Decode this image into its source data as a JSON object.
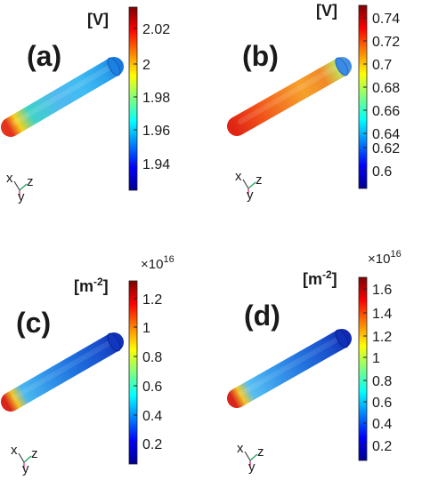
{
  "panels": [
    {
      "id": "a",
      "label": "(a)",
      "unit": "[V]",
      "unit_sup": "",
      "exponent": "",
      "exponent_sup": "",
      "ticks": [
        "2.02",
        "2",
        "1.98",
        "1.96",
        "1.94"
      ],
      "colorbar_scheme": "jet",
      "rod_gradient": [
        "#e4321e",
        "#f4d21c",
        "#3fd2c8",
        "#4fb8f0",
        "#3fbcf2",
        "#2aa2ec",
        "#1878dc"
      ],
      "axes_triad": {
        "x": "x",
        "y": "y",
        "z": "z"
      }
    },
    {
      "id": "b",
      "label": "(b)",
      "unit": "[V]",
      "unit_sup": "",
      "exponent": "",
      "exponent_sup": "",
      "ticks": [
        "0.74",
        "0.72",
        "0.7",
        "0.68",
        "0.66",
        "0.64",
        "0.62",
        "0.6"
      ],
      "colorbar_scheme": "jet",
      "rod_gradient": [
        "#e02414",
        "#f04c18",
        "#f47a22",
        "#f6a02c",
        "#f08a26",
        "#c8d858",
        "#3a8aee"
      ],
      "axes_triad": {
        "x": "x",
        "y": "y",
        "z": "z"
      }
    },
    {
      "id": "c",
      "label": "(c)",
      "unit": "[m",
      "unit_sup": "-2",
      "exponent": "×10",
      "exponent_sup": "16",
      "ticks": [
        "1.2",
        "1",
        "0.8",
        "0.6",
        "0.4",
        "0.2"
      ],
      "colorbar_scheme": "jet",
      "rod_gradient": [
        "#d8241a",
        "#f0c82a",
        "#4ab8ee",
        "#3296ea",
        "#1e6ede",
        "#1850cc",
        "#1030b8"
      ],
      "axes_triad": {
        "x": "x",
        "y": "y",
        "z": "z"
      }
    },
    {
      "id": "d",
      "label": "(d)",
      "unit": "[m",
      "unit_sup": "-2",
      "exponent": "×10",
      "exponent_sup": "16",
      "ticks": [
        "1.6",
        "1.4",
        "1.2",
        "1",
        "0.8",
        "0.6",
        "0.4",
        "0.2"
      ],
      "colorbar_scheme": "jet",
      "rod_gradient": [
        "#d8241a",
        "#f0c82a",
        "#58c0f2",
        "#3a9cec",
        "#2272de",
        "#1850cc",
        "#1028b2"
      ],
      "axes_triad": {
        "x": "x",
        "y": "y",
        "z": "z"
      }
    }
  ]
}
